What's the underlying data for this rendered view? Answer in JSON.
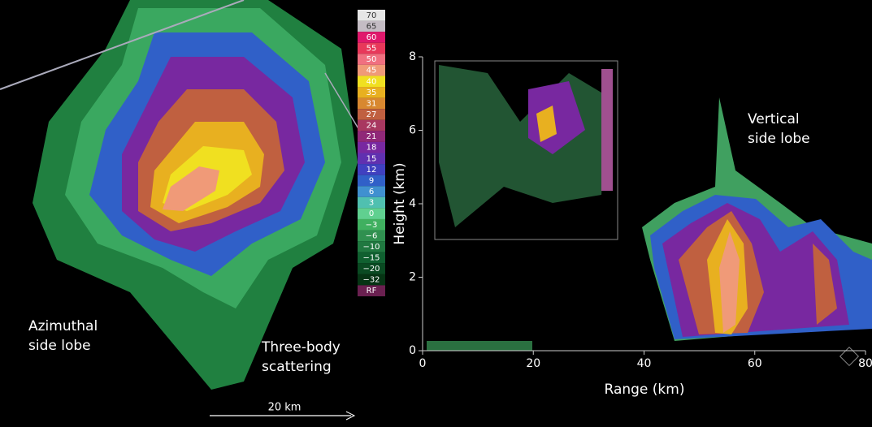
{
  "left_panel": {
    "labels": {
      "azimuthal": [
        "Azimuthal",
        "side lobe"
      ],
      "three_body": [
        "Three-body",
        "scattering"
      ],
      "scale": "20 km"
    },
    "legend": [
      {
        "label": "70",
        "color": "#e6e6e6"
      },
      {
        "label": "65",
        "color": "#c4bcc4"
      },
      {
        "label": "60",
        "color": "#e0186c"
      },
      {
        "label": "55",
        "color": "#e8385a"
      },
      {
        "label": "50",
        "color": "#f07080"
      },
      {
        "label": "45",
        "color": "#f09a78"
      },
      {
        "label": "40",
        "color": "#f0e020"
      },
      {
        "label": "35",
        "color": "#e8b020"
      },
      {
        "label": "31",
        "color": "#d88830"
      },
      {
        "label": "27",
        "color": "#c06040"
      },
      {
        "label": "24",
        "color": "#a83860"
      },
      {
        "label": "21",
        "color": "#902878"
      },
      {
        "label": "18",
        "color": "#7828a0"
      },
      {
        "label": "15",
        "color": "#6030b0"
      },
      {
        "label": "12",
        "color": "#4040c0"
      },
      {
        "label": "9",
        "color": "#3060c8"
      },
      {
        "label": "6",
        "color": "#4090d0"
      },
      {
        "label": "3",
        "color": "#50c0b0"
      },
      {
        "label": "0",
        "color": "#60d090"
      },
      {
        "label": "−3",
        "color": "#40b060"
      },
      {
        "label": "−6",
        "color": "#309050"
      },
      {
        "label": "−10",
        "color": "#207840"
      },
      {
        "label": "−15",
        "color": "#106030"
      },
      {
        "label": "−20",
        "color": "#0a4a22"
      },
      {
        "label": "−32",
        "color": "#063414"
      },
      {
        "label": "RF",
        "color": "#6a2050"
      }
    ]
  },
  "right_panel": {
    "y_label": "Height (km)",
    "x_label": "Range (km)",
    "yticks": [
      0,
      2,
      4,
      6,
      8
    ],
    "xticks": [
      0,
      20,
      40,
      60,
      80
    ],
    "annotation": [
      "Vertical",
      "side lobe"
    ]
  }
}
